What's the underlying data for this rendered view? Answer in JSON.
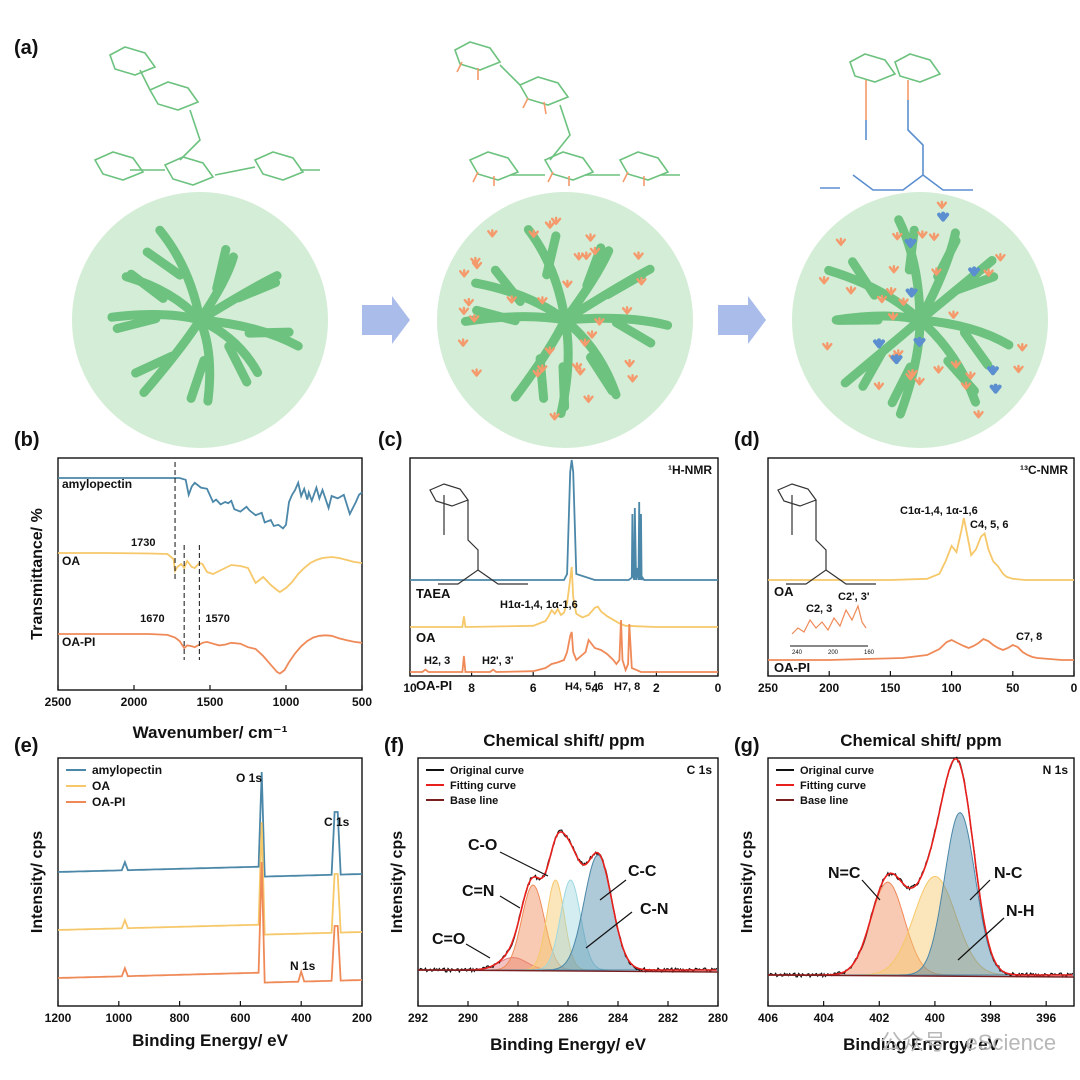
{
  "figure": {
    "panel_labels": [
      "(a)",
      "(b)",
      "(c)",
      "(d)",
      "(e)",
      "(f)",
      "(g)"
    ],
    "watermark": "公众号 · eScience",
    "colors": {
      "blue": "#4b87a8",
      "yellow": "#f6c86a",
      "orange": "#ef8a58",
      "red": "#e8201d",
      "darkred": "#7a1f1f",
      "green": "#6cc27e",
      "sphere": "#d4edd6",
      "arrow": "#9bb0e6",
      "aldehyde": "#f49a6c",
      "amine": "#5b8fcf"
    }
  },
  "scheme": {
    "icons": [
      "arrow-right-icon",
      "arrow-right-icon"
    ]
  },
  "chart_data": [
    {
      "panel": "(b)",
      "type": "line",
      "title": "",
      "xlabel": "Wavenumber/ cm⁻¹",
      "ylabel": "Transmittance/ %",
      "xlim": [
        2500,
        500
      ],
      "xticks": [
        2500,
        2000,
        1500,
        1000,
        500
      ],
      "series": [
        {
          "name": "amylopectin",
          "color": "#4b87a8",
          "offset": 0.8,
          "x": [
            2500,
            2200,
            1900,
            1780,
            1700,
            1660,
            1640,
            1620,
            1600,
            1560,
            1520,
            1480,
            1460,
            1430,
            1400,
            1380,
            1360,
            1340,
            1300,
            1260,
            1240,
            1200,
            1160,
            1140,
            1100,
            1080,
            1050,
            1020,
            1000,
            980,
            960,
            940,
            920,
            900,
            880,
            860,
            850,
            830,
            800,
            780,
            760,
            720,
            700,
            660,
            620,
            580,
            540,
            520,
            500
          ],
          "y": [
            1.0,
            1.0,
            1.0,
            1.0,
            1.0,
            0.97,
            0.72,
            0.86,
            0.92,
            0.84,
            0.82,
            0.6,
            0.64,
            0.56,
            0.6,
            0.58,
            0.62,
            0.48,
            0.44,
            0.52,
            0.46,
            0.38,
            0.42,
            0.26,
            0.3,
            0.2,
            0.22,
            0.16,
            0.22,
            0.6,
            0.72,
            0.8,
            0.92,
            0.7,
            0.82,
            0.64,
            0.76,
            0.62,
            0.84,
            0.66,
            0.8,
            0.5,
            0.7,
            0.66,
            0.72,
            0.4,
            0.6,
            0.72,
            0.76
          ]
        },
        {
          "name": "OA",
          "color": "#f6c86a",
          "offset": 0.5,
          "x": [
            2500,
            2200,
            1900,
            1780,
            1740,
            1730,
            1715,
            1690,
            1670,
            1650,
            1620,
            1600,
            1570,
            1550,
            1520,
            1480,
            1440,
            1400,
            1360,
            1300,
            1250,
            1200,
            1150,
            1100,
            1060,
            1040,
            1000,
            960,
            920,
            880,
            840,
            800,
            760,
            700,
            650,
            600,
            550,
            500
          ],
          "y": [
            1.0,
            1.0,
            0.99,
            0.98,
            0.88,
            0.64,
            0.72,
            0.78,
            0.7,
            0.84,
            0.72,
            0.7,
            0.8,
            0.78,
            0.62,
            0.58,
            0.64,
            0.7,
            0.76,
            0.74,
            0.7,
            0.4,
            0.52,
            0.36,
            0.26,
            0.22,
            0.3,
            0.42,
            0.58,
            0.7,
            0.8,
            0.86,
            0.9,
            0.92,
            0.9,
            0.86,
            0.82,
            0.8
          ]
        },
        {
          "name": "OA-PI",
          "color": "#ef8a58",
          "offset": 0.18,
          "x": [
            2500,
            2200,
            1900,
            1780,
            1730,
            1700,
            1670,
            1650,
            1620,
            1600,
            1570,
            1550,
            1520,
            1480,
            1440,
            1400,
            1360,
            1300,
            1250,
            1200,
            1150,
            1100,
            1060,
            1040,
            1010,
            980,
            940,
            900,
            860,
            820,
            780,
            740,
            700,
            650,
            600,
            550,
            500
          ],
          "y": [
            1.0,
            1.0,
            1.0,
            0.98,
            0.92,
            0.84,
            0.68,
            0.74,
            0.72,
            0.7,
            0.76,
            0.8,
            0.82,
            0.78,
            0.74,
            0.76,
            0.8,
            0.78,
            0.7,
            0.66,
            0.5,
            0.3,
            0.14,
            0.1,
            0.18,
            0.36,
            0.56,
            0.72,
            0.84,
            0.92,
            0.96,
            0.97,
            0.96,
            0.9,
            0.86,
            0.82,
            0.8
          ]
        }
      ],
      "annotations": [
        {
          "text": "1730",
          "x": 1730
        },
        {
          "text": "1670",
          "x": 1670
        },
        {
          "text": "1570",
          "x": 1570
        }
      ]
    },
    {
      "panel": "(c)",
      "type": "line",
      "title": "¹H-NMR",
      "xlabel": "Chemical shift/ ppm",
      "xlim": [
        10,
        0
      ],
      "xticks": [
        10,
        8,
        6,
        4,
        2,
        0
      ],
      "series": [
        {
          "name": "TAEA",
          "color": "#4b87a8",
          "x": [
            10,
            5,
            4.9,
            4.8,
            4.75,
            4.7,
            4.6,
            4,
            3,
            2.9,
            2.8,
            2.78,
            2.76,
            2.72,
            2.7,
            2.66,
            2.62,
            2.58,
            2.56,
            2.54,
            2.5,
            2.48,
            2.45,
            2.4,
            2,
            0
          ],
          "y": [
            0,
            0,
            0.05,
            0.9,
            1.0,
            0.9,
            0.05,
            0,
            0,
            0,
            0.02,
            0.55,
            0.05,
            0,
            0.6,
            0,
            0.1,
            0,
            0.65,
            0,
            0.55,
            0,
            0.02,
            0,
            0,
            0
          ]
        },
        {
          "name": "OA",
          "color": "#f6c86a",
          "x": [
            10,
            8.3,
            8.25,
            8.2,
            6,
            5.6,
            5.5,
            5.4,
            5.3,
            5.2,
            5.1,
            5.0,
            4.9,
            4.8,
            4.75,
            4.7,
            4.6,
            4.4,
            4.2,
            4.0,
            3.9,
            3.8,
            3.6,
            3.4,
            3.2,
            3.0,
            2,
            0
          ],
          "y": [
            0,
            0,
            0.18,
            0,
            0.02,
            0.1,
            0.18,
            0.28,
            0.22,
            0.3,
            0.2,
            0.24,
            0.4,
            0.8,
            1.0,
            0.5,
            0.22,
            0.16,
            0.2,
            0.32,
            0.34,
            0.26,
            0.18,
            0.12,
            0.06,
            0.02,
            0,
            0
          ]
        },
        {
          "name": "OA-PI",
          "color": "#ef8a58",
          "x": [
            10,
            9.6,
            9.5,
            9.4,
            8.3,
            8.25,
            8.2,
            7.4,
            7.3,
            7.2,
            6,
            5.6,
            5.4,
            5.2,
            5.0,
            4.9,
            4.8,
            4.75,
            4.7,
            4.6,
            4.3,
            4.2,
            4.0,
            3.8,
            3.6,
            3.4,
            3.3,
            3.2,
            3.15,
            3.1,
            3.0,
            2.92,
            2.88,
            2.8,
            2.5,
            0
          ],
          "y": [
            0,
            0,
            0.06,
            0,
            0,
            0.4,
            0,
            0,
            0.06,
            0,
            0.02,
            0.1,
            0.2,
            0.24,
            0.3,
            0.5,
            0.9,
            1.0,
            0.5,
            0.3,
            0.5,
            0.8,
            0.6,
            0.55,
            0.45,
            0.3,
            0.2,
            0.3,
            1.3,
            0.3,
            0.05,
            0.2,
            1.2,
            0.1,
            0,
            0
          ]
        }
      ],
      "series_labels": [
        "TAEA",
        "OA",
        "OA-PI"
      ],
      "annotations": [
        "H1α-1,4, 1α-1,6",
        "H2, 3",
        "H2', 3'",
        "H4, 5, 6",
        "H7, 8"
      ]
    },
    {
      "panel": "(d)",
      "type": "line",
      "title": "¹³C-NMR",
      "xlabel": "Chemical shift/ ppm",
      "xlim": [
        250,
        0
      ],
      "xticks": [
        250,
        200,
        150,
        100,
        50,
        0
      ],
      "series": [
        {
          "name": "OA",
          "color": "#f6c86a",
          "x": [
            250,
            200,
            150,
            120,
            110,
            105,
            100,
            96,
            92,
            90,
            88,
            84,
            80,
            76,
            73,
            70,
            66,
            62,
            58,
            55,
            50,
            40,
            30,
            20,
            10,
            0
          ],
          "y": [
            0,
            0,
            0,
            0.02,
            0.1,
            0.3,
            0.55,
            0.45,
            0.8,
            1.0,
            0.8,
            0.4,
            0.5,
            0.7,
            0.75,
            0.5,
            0.3,
            0.22,
            0.1,
            0.05,
            0.02,
            0,
            0,
            0,
            0,
            0
          ]
        },
        {
          "name": "OA-PI",
          "color": "#ef8a58",
          "x": [
            250,
            200,
            170,
            140,
            120,
            110,
            104,
            100,
            96,
            90,
            86,
            82,
            78,
            74,
            70,
            66,
            62,
            58,
            54,
            50,
            46,
            42,
            38,
            34,
            30,
            20,
            10,
            0
          ],
          "y": [
            0,
            0,
            0.02,
            0.04,
            0.1,
            0.22,
            0.36,
            0.4,
            0.35,
            0.28,
            0.24,
            0.28,
            0.34,
            0.42,
            0.38,
            0.3,
            0.24,
            0.2,
            0.24,
            0.3,
            0.26,
            0.16,
            0.1,
            0.06,
            0.04,
            0.02,
            0,
            0
          ]
        }
      ],
      "inset": {
        "xticks": [
          240,
          200,
          160
        ],
        "label": "C2, 3",
        "label2": "C2', 3'"
      },
      "annotations": [
        "C1α-1,4, 1α-1,6",
        "C4, 5, 6",
        "C7, 8",
        "C2, 3",
        "C2', 3'"
      ]
    },
    {
      "panel": "(e)",
      "type": "line",
      "xlabel": "Binding Energy/ eV",
      "ylabel": "Intensity/ cps",
      "xlim": [
        1200,
        200
      ],
      "xticks": [
        1200,
        1000,
        800,
        600,
        400,
        200
      ],
      "legend": [
        "amylopectin",
        "OA",
        "OA-PI"
      ],
      "series": [
        {
          "name": "amylopectin",
          "color": "#4b87a8"
        },
        {
          "name": "OA",
          "color": "#f6c86a"
        },
        {
          "name": "OA-PI",
          "color": "#ef8a58"
        }
      ],
      "annotations": [
        "O 1s",
        "C 1s",
        "N 1s"
      ]
    },
    {
      "panel": "(f)",
      "type": "line",
      "title": "C 1s",
      "xlabel": "Binding Energy/ eV",
      "ylabel": "Intensity/ cps",
      "xlim": [
        292,
        280
      ],
      "xticks": [
        292,
        290,
        288,
        286,
        284,
        282,
        280
      ],
      "legend": [
        "Original curve",
        "Fitting curve",
        "Base line"
      ],
      "peaks": [
        {
          "name": "C=O",
          "center": 288.2,
          "height": 0.05,
          "width": 0.55,
          "color": "#e57a7a"
        },
        {
          "name": "C=N",
          "center": 287.4,
          "height": 0.34,
          "width": 0.45,
          "color": "#ef8a58"
        },
        {
          "name": "C-O",
          "center": 286.5,
          "height": 0.36,
          "width": 0.35,
          "color": "#f6c86a"
        },
        {
          "name": "C-N",
          "center": 285.9,
          "height": 0.36,
          "width": 0.4,
          "color": "#9ed8e0"
        },
        {
          "name": "C-C",
          "center": 284.8,
          "height": 0.46,
          "width": 0.55,
          "color": "#4b87a8"
        }
      ]
    },
    {
      "panel": "(g)",
      "type": "line",
      "title": "N 1s",
      "xlabel": "Binding Energy/ eV",
      "ylabel": "Intensity/ cps",
      "xlim": [
        406,
        395
      ],
      "xticks": [
        406,
        404,
        402,
        400,
        398,
        396
      ],
      "legend": [
        "Original curve",
        "Fitting curve",
        "Base line"
      ],
      "peaks": [
        {
          "name": "N=C",
          "center": 401.7,
          "height": 0.32,
          "width": 0.6,
          "color": "#ef8a58"
        },
        {
          "name": "N-H",
          "center": 400.0,
          "height": 0.34,
          "width": 0.75,
          "color": "#f6c86a"
        },
        {
          "name": "N-C",
          "center": 399.1,
          "height": 0.56,
          "width": 0.55,
          "color": "#4b87a8"
        }
      ]
    }
  ]
}
